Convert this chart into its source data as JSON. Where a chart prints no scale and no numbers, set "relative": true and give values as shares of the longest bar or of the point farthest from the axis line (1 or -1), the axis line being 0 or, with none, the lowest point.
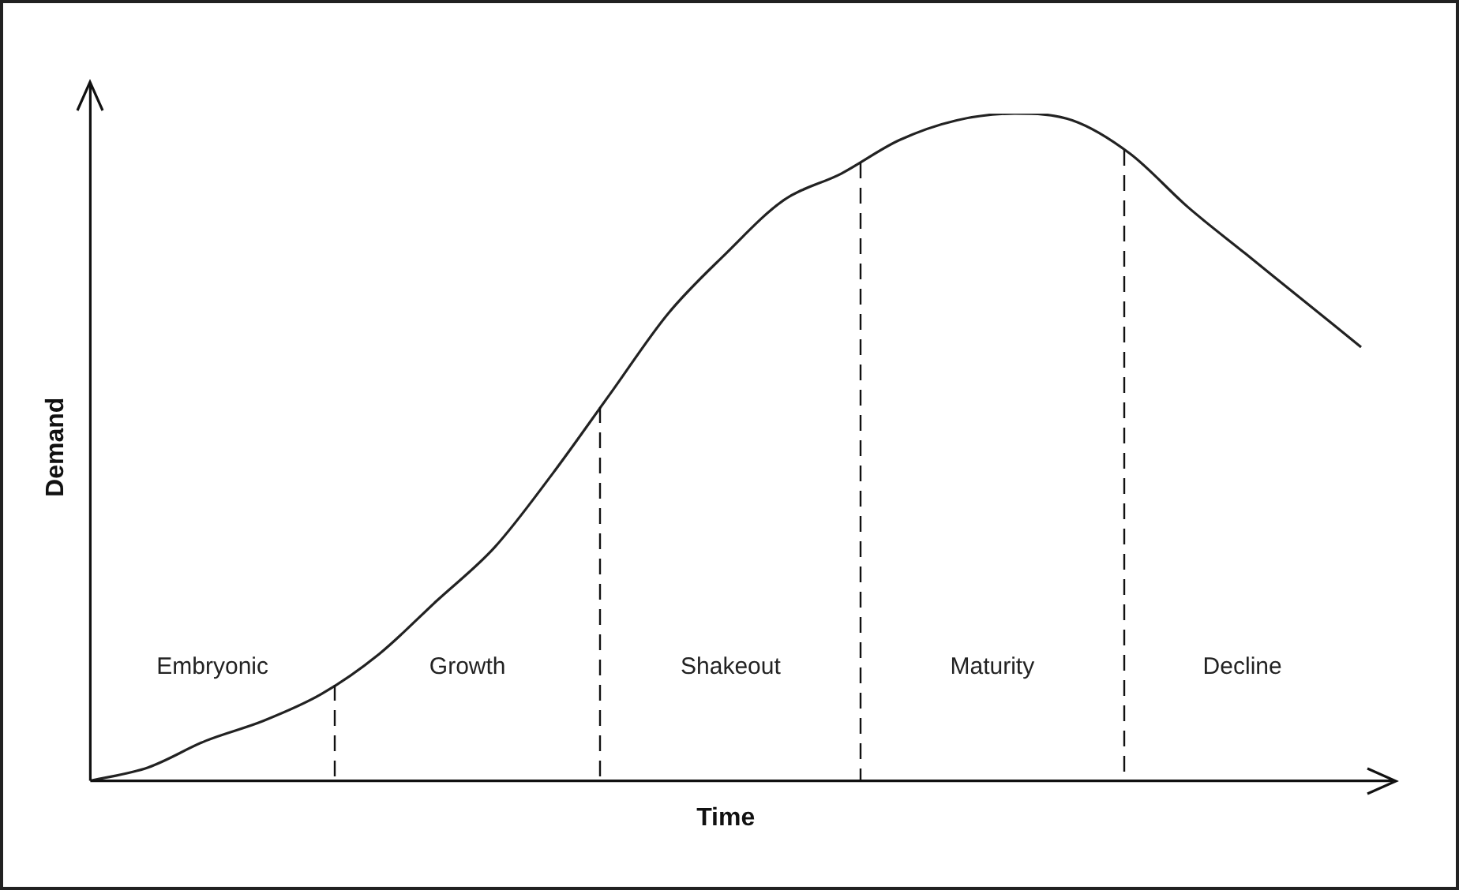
{
  "chart_data": {
    "type": "line",
    "relative": true,
    "xlabel": "Time",
    "ylabel": "Demand",
    "categories": [
      null,
      null,
      null,
      null,
      null,
      null,
      null,
      null,
      null,
      null,
      null,
      null,
      null,
      null,
      null,
      null,
      null,
      null,
      null,
      null,
      null,
      null,
      null
    ],
    "series": [
      {
        "color": "#222222",
        "values": [
          0,
          0.02,
          0.06,
          0.09,
          0.13,
          0.19,
          0.27,
          0.35,
          0.46,
          0.58,
          0.7,
          0.79,
          0.87,
          0.91,
          0.96,
          0.99,
          1,
          0.99,
          0.94,
          0.86,
          0.79,
          0.72,
          0.65
        ]
      }
    ],
    "annotations": [
      "Embryonic",
      "Growth",
      "Shakeout",
      "Maturity",
      "Decline"
    ],
    "grid": false,
    "legend": false,
    "tick_labels": false,
    "marker": "none",
    "line_style": "solid"
  }
}
